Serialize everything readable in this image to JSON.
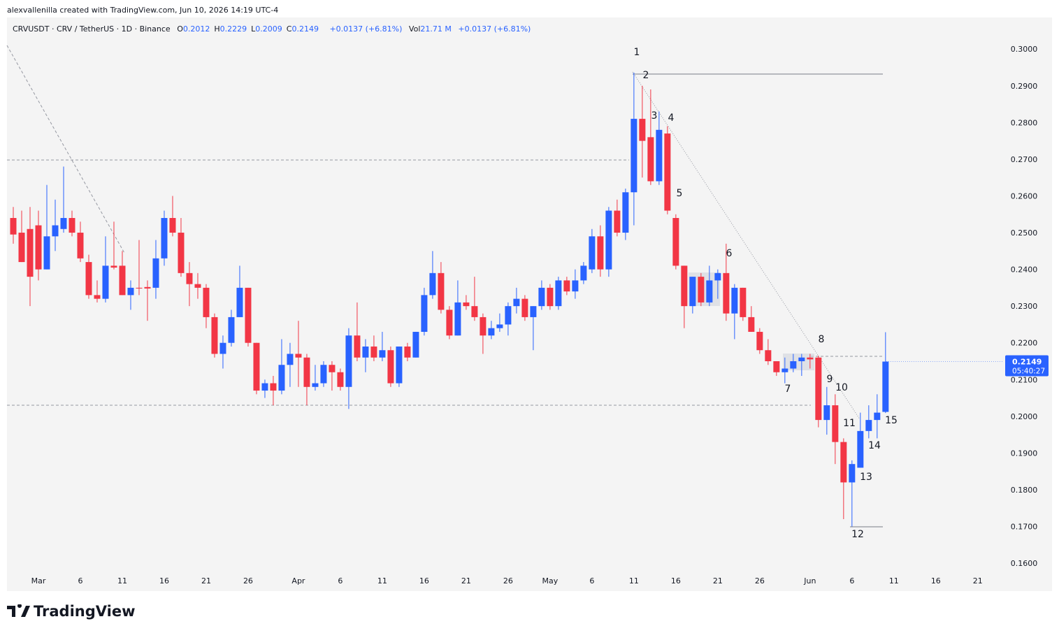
{
  "header": {
    "credit": "alexvallenilla created with TradingView.com, Jun 10, 2026 14:19 UTC-4",
    "symbol": "CRVUSDT · CRV / TetherUS · 1D · Binance",
    "fields": [
      {
        "label": "O",
        "value": 0.2012
      },
      {
        "label": "H",
        "value": 0.2229
      },
      {
        "label": "L",
        "value": 0.2009
      },
      {
        "label": "C",
        "value": 0.2149
      }
    ],
    "change": "+0.0137 (+6.81%)",
    "volume_label": "Vol",
    "volume": "21.71 M",
    "volume_change": "+0.0137 (+6.81%)"
  },
  "chart_data": {
    "type": "candlestick",
    "up_color": "#2962ff",
    "down_color": "#f23645",
    "x": [
      -3,
      -2,
      -1,
      0,
      1,
      2,
      3,
      4,
      5,
      6,
      7,
      8,
      9,
      10,
      11,
      12,
      13,
      14,
      15,
      16,
      17,
      18,
      19,
      20,
      21,
      22,
      23,
      24,
      25,
      26,
      27,
      28,
      29,
      30,
      31,
      32,
      33,
      34,
      35,
      36,
      37,
      38,
      39,
      40,
      41,
      42,
      43,
      44,
      45,
      46,
      47,
      48,
      49,
      50,
      51,
      52,
      53,
      54,
      55,
      56,
      57,
      58,
      59,
      60,
      61,
      62,
      63,
      64,
      65,
      66,
      67,
      68,
      69,
      70,
      71,
      72,
      73,
      74,
      75,
      76,
      77,
      78,
      79,
      80,
      81,
      82,
      83,
      84,
      85,
      86,
      87,
      88,
      89,
      90,
      91,
      92,
      93,
      94,
      95,
      96,
      97,
      98,
      99,
      100,
      101
    ],
    "open": [
      0.254,
      0.25,
      0.251,
      0.252,
      0.24,
      0.249,
      0.251,
      0.254,
      0.25,
      0.242,
      0.233,
      0.232,
      0.241,
      0.241,
      0.233,
      0.235,
      0.2352,
      0.235,
      0.243,
      0.254,
      0.25,
      0.239,
      0.236,
      0.235,
      0.227,
      0.217,
      0.22,
      0.227,
      0.235,
      0.22,
      0.207,
      0.209,
      0.207,
      0.214,
      0.217,
      0.216,
      0.208,
      0.209,
      0.214,
      0.212,
      0.208,
      0.222,
      0.216,
      0.219,
      0.216,
      0.218,
      0.209,
      0.219,
      0.216,
      0.223,
      0.233,
      0.239,
      0.229,
      0.222,
      0.231,
      0.23,
      0.227,
      0.222,
      0.224,
      0.225,
      0.23,
      0.232,
      0.227,
      0.23,
      0.235,
      0.23,
      0.237,
      0.234,
      0.237,
      0.24,
      0.249,
      0.24,
      0.256,
      0.25,
      0.261,
      0.281,
      0.276,
      0.264,
      0.277,
      0.254,
      0.241,
      0.23,
      0.238,
      0.231,
      0.237,
      0.239,
      0.228,
      0.235,
      0.227,
      0.223,
      0.218,
      0.215,
      0.212,
      0.213,
      0.215,
      0.216,
      0.216,
      0.199,
      0.203,
      0.193,
      0.182,
      0.186,
      0.196,
      0.199,
      0.2012
    ],
    "high": [
      0.257,
      0.256,
      0.257,
      0.256,
      0.263,
      0.259,
      0.268,
      0.256,
      0.253,
      0.244,
      0.237,
      0.249,
      0.253,
      0.245,
      0.237,
      0.248,
      0.237,
      0.248,
      0.256,
      0.26,
      0.254,
      0.242,
      0.239,
      0.236,
      0.228,
      0.222,
      0.229,
      0.241,
      0.235,
      0.22,
      0.21,
      0.211,
      0.221,
      0.22,
      0.226,
      0.217,
      0.214,
      0.215,
      0.215,
      0.213,
      0.224,
      0.231,
      0.221,
      0.222,
      0.223,
      0.219,
      0.219,
      0.22,
      0.223,
      0.235,
      0.245,
      0.242,
      0.23,
      0.237,
      0.233,
      0.238,
      0.228,
      0.226,
      0.228,
      0.231,
      0.235,
      0.233,
      0.23,
      0.237,
      0.236,
      0.238,
      0.238,
      0.24,
      0.242,
      0.251,
      0.252,
      0.257,
      0.259,
      0.262,
      0.2936,
      0.29,
      0.289,
      0.283,
      0.279,
      0.255,
      0.241,
      0.238,
      0.239,
      0.241,
      0.24,
      0.247,
      0.236,
      0.235,
      0.23,
      0.224,
      0.221,
      0.215,
      0.216,
      0.217,
      0.217,
      0.217,
      0.2165,
      0.208,
      0.206,
      0.194,
      0.188,
      0.201,
      0.203,
      0.206,
      0.2229
    ],
    "low": [
      0.247,
      0.242,
      0.23,
      0.237,
      0.24,
      0.245,
      0.25,
      0.249,
      0.242,
      0.232,
      0.231,
      0.231,
      0.24,
      0.233,
      0.229,
      0.233,
      0.226,
      0.232,
      0.241,
      0.249,
      0.238,
      0.23,
      0.232,
      0.224,
      0.216,
      0.213,
      0.219,
      0.227,
      0.219,
      0.206,
      0.205,
      0.203,
      0.206,
      0.208,
      0.208,
      0.203,
      0.207,
      0.208,
      0.207,
      0.207,
      0.202,
      0.215,
      0.212,
      0.215,
      0.215,
      0.208,
      0.208,
      0.215,
      0.216,
      0.222,
      0.232,
      0.228,
      0.221,
      0.222,
      0.229,
      0.226,
      0.217,
      0.221,
      0.223,
      0.222,
      0.228,
      0.226,
      0.218,
      0.229,
      0.229,
      0.229,
      0.233,
      0.232,
      0.236,
      0.239,
      0.238,
      0.238,
      0.249,
      0.248,
      0.252,
      0.265,
      0.263,
      0.263,
      0.255,
      0.24,
      0.224,
      0.228,
      0.23,
      0.23,
      0.232,
      0.226,
      0.221,
      0.226,
      0.223,
      0.217,
      0.214,
      0.211,
      0.209,
      0.212,
      0.211,
      0.213,
      0.197,
      0.195,
      0.187,
      0.172,
      0.17,
      0.186,
      0.194,
      0.194,
      0.2009
    ],
    "close": [
      0.2495,
      0.242,
      0.238,
      0.24,
      0.249,
      0.252,
      0.254,
      0.25,
      0.243,
      0.233,
      0.232,
      0.241,
      0.2405,
      0.233,
      0.235,
      0.2348,
      0.2348,
      0.243,
      0.254,
      0.25,
      0.239,
      0.236,
      0.235,
      0.227,
      0.217,
      0.22,
      0.227,
      0.235,
      0.22,
      0.207,
      0.209,
      0.207,
      0.214,
      0.217,
      0.216,
      0.208,
      0.209,
      0.214,
      0.212,
      0.208,
      0.222,
      0.216,
      0.219,
      0.216,
      0.218,
      0.209,
      0.219,
      0.216,
      0.223,
      0.233,
      0.239,
      0.229,
      0.222,
      0.231,
      0.23,
      0.227,
      0.222,
      0.224,
      0.225,
      0.23,
      0.232,
      0.227,
      0.23,
      0.235,
      0.23,
      0.237,
      0.234,
      0.237,
      0.241,
      0.249,
      0.24,
      0.256,
      0.25,
      0.261,
      0.281,
      0.275,
      0.264,
      0.278,
      0.256,
      0.241,
      0.23,
      0.238,
      0.231,
      0.237,
      0.239,
      0.228,
      0.235,
      0.227,
      0.223,
      0.218,
      0.215,
      0.212,
      0.213,
      0.215,
      0.216,
      0.2155,
      0.199,
      0.203,
      0.193,
      0.182,
      0.187,
      0.196,
      0.199,
      0.201,
      0.2149
    ],
    "xlim": [
      -3.75,
      114.6
    ],
    "xticks": [
      {
        "value": 0,
        "label": "Mar"
      },
      {
        "value": 5,
        "label": "6"
      },
      {
        "value": 10,
        "label": "11"
      },
      {
        "value": 15,
        "label": "16"
      },
      {
        "value": 20,
        "label": "21"
      },
      {
        "value": 25,
        "label": "26"
      },
      {
        "value": 31,
        "label": "Apr"
      },
      {
        "value": 36,
        "label": "6"
      },
      {
        "value": 41,
        "label": "11"
      },
      {
        "value": 46,
        "label": "16"
      },
      {
        "value": 51,
        "label": "21"
      },
      {
        "value": 56,
        "label": "26"
      },
      {
        "value": 61,
        "label": "May"
      },
      {
        "value": 66,
        "label": "6"
      },
      {
        "value": 71,
        "label": "11"
      },
      {
        "value": 76,
        "label": "16"
      },
      {
        "value": 81,
        "label": "21"
      },
      {
        "value": 86,
        "label": "26"
      },
      {
        "value": 92,
        "label": "Jun"
      },
      {
        "value": 97,
        "label": "6"
      },
      {
        "value": 102,
        "label": "11"
      },
      {
        "value": 107,
        "label": "16"
      },
      {
        "value": 112,
        "label": "21"
      }
    ],
    "ylim": [
      0.1526,
      0.3086
    ],
    "yticks": [
      {
        "value": 0.16,
        "label": "0.1600"
      },
      {
        "value": 0.17,
        "label": "0.1700"
      },
      {
        "value": 0.18,
        "label": "0.1800"
      },
      {
        "value": 0.19,
        "label": "0.1900"
      },
      {
        "value": 0.2,
        "label": "0.2000"
      },
      {
        "value": 0.21,
        "label": "0.2100"
      },
      {
        "value": 0.22,
        "label": "0.2200"
      },
      {
        "value": 0.23,
        "label": "0.2300"
      },
      {
        "value": 0.24,
        "label": "0.2400"
      },
      {
        "value": 0.25,
        "label": "0.2500"
      },
      {
        "value": 0.26,
        "label": "0.2600"
      },
      {
        "value": 0.27,
        "label": "0.2700"
      },
      {
        "value": 0.28,
        "label": "0.2800"
      },
      {
        "value": 0.29,
        "label": "0.2900"
      },
      {
        "value": 0.3,
        "label": "0.3000"
      }
    ],
    "last_price": 0.2149,
    "countdown": "05:40:27",
    "annotations": [
      "1",
      "2",
      "3",
      "4",
      "5",
      "6",
      "7",
      "8",
      "9",
      "10",
      "11",
      "12",
      "13",
      "14",
      "15"
    ]
  },
  "footer": {
    "brand": "TradingView"
  }
}
